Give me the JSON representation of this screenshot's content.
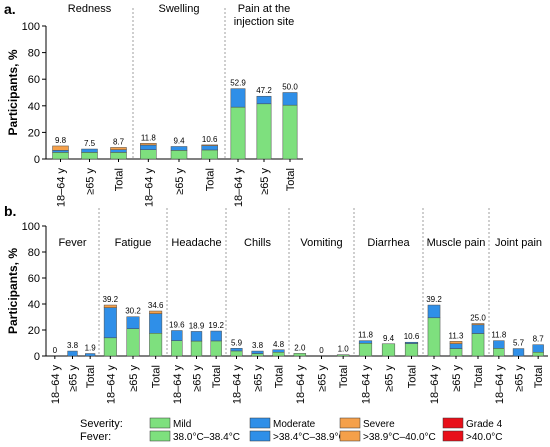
{
  "colors": {
    "mild": "#7ee07e",
    "moderate": "#2f8fe8",
    "severe": "#f5a04a",
    "grade4": "#e8101a"
  },
  "legend": {
    "severity_label": "Severity:",
    "fever_label": "Fever:",
    "entries": [
      {
        "key": "mild",
        "severity": "Mild",
        "fever": "38.0°C–38.4°C",
        "color": "#7ee07e"
      },
      {
        "key": "moderate",
        "severity": "Moderate",
        "fever": ">38.4°C–38.9°C",
        "color": "#2f8fe8"
      },
      {
        "key": "severe",
        "severity": "Severe",
        "fever": ">38.9°C–40.0°C",
        "color": "#f5a04a"
      },
      {
        "key": "grade4",
        "severity": "Grade 4",
        "fever": ">40.0°C",
        "color": "#e8101a"
      }
    ]
  },
  "chart_data": [
    {
      "type": "bar",
      "stacked": true,
      "panel_label": "a.",
      "ylabel": "Participants, %",
      "ylim": [
        0,
        100
      ],
      "yticks": [
        0,
        20,
        40,
        60,
        80,
        100
      ],
      "grid": false,
      "stack_order": [
        "mild",
        "moderate",
        "severe",
        "grade4"
      ],
      "groups": [
        {
          "name": "Redness",
          "categories": [
            "18–64 y",
            "≥65 y",
            "Total"
          ],
          "totals": [
            "9.8",
            "7.5",
            "8.7"
          ],
          "mild": [
            5.0,
            5.0,
            5.0
          ],
          "moderate": [
            1.5,
            2.5,
            2.0
          ],
          "severe": [
            3.3,
            0,
            1.7
          ],
          "grade4": [
            0,
            0,
            0
          ]
        },
        {
          "name": "Swelling",
          "categories": [
            "18–64 y",
            "≥65 y",
            "Total"
          ],
          "totals": [
            "11.8",
            "9.4",
            "10.6"
          ],
          "mild": [
            7.0,
            6.5,
            6.8
          ],
          "moderate": [
            3.5,
            2.9,
            3.2
          ],
          "severe": [
            1.3,
            0,
            0.6
          ],
          "grade4": [
            0,
            0,
            0
          ]
        },
        {
          "name": "Pain at the injection site",
          "categories": [
            "18–64 y",
            "≥65 y",
            "Total"
          ],
          "totals": [
            "52.9",
            "47.2",
            "50.0"
          ],
          "mild": [
            39.0,
            41.5,
            40.5
          ],
          "moderate": [
            13.9,
            5.7,
            9.5
          ],
          "severe": [
            0,
            0,
            0
          ],
          "grade4": [
            0,
            0,
            0
          ]
        }
      ]
    },
    {
      "type": "bar",
      "stacked": true,
      "panel_label": "b.",
      "ylabel": "Participants, %",
      "ylim": [
        0,
        100
      ],
      "yticks": [
        0,
        20,
        40,
        60,
        80,
        100
      ],
      "grid": false,
      "stack_order": [
        "mild",
        "moderate",
        "severe",
        "grade4"
      ],
      "groups": [
        {
          "name": "Fever",
          "categories": [
            "18–64 y",
            "≥65 y",
            "Total"
          ],
          "totals": [
            "0",
            "3.8",
            "1.9"
          ],
          "mild": [
            0,
            0,
            0
          ],
          "moderate": [
            0,
            3.8,
            1.9
          ],
          "severe": [
            0,
            0,
            0
          ],
          "grade4": [
            0,
            0,
            0
          ]
        },
        {
          "name": "Fatigue",
          "categories": [
            "18–64 y",
            "≥65 y",
            "Total"
          ],
          "totals": [
            "39.2",
            "30.2",
            "34.6"
          ],
          "mild": [
            14.0,
            21.0,
            17.5
          ],
          "moderate": [
            23.2,
            9.2,
            15.1
          ],
          "severe": [
            2.0,
            0,
            2.0
          ],
          "grade4": [
            0,
            0,
            0
          ]
        },
        {
          "name": "Headache",
          "categories": [
            "18–64 y",
            "≥65 y",
            "Total"
          ],
          "totals": [
            "19.6",
            "18.9",
            "19.2"
          ],
          "mild": [
            11.8,
            11.5,
            11.6
          ],
          "moderate": [
            7.8,
            7.4,
            7.6
          ],
          "severe": [
            0,
            0,
            0
          ],
          "grade4": [
            0,
            0,
            0
          ]
        },
        {
          "name": "Chills",
          "categories": [
            "18–64 y",
            "≥65 y",
            "Total"
          ],
          "totals": [
            "5.9",
            "3.8",
            "4.8"
          ],
          "mild": [
            3.9,
            1.9,
            2.9
          ],
          "moderate": [
            2.0,
            1.9,
            1.9
          ],
          "severe": [
            0,
            0,
            0
          ],
          "grade4": [
            0,
            0,
            0
          ]
        },
        {
          "name": "Vomiting",
          "categories": [
            "18–64 y",
            "≥65 y",
            "Total"
          ],
          "totals": [
            "2.0",
            "0",
            "1.0"
          ],
          "mild": [
            2.0,
            0,
            1.0
          ],
          "moderate": [
            0,
            0,
            0
          ],
          "severe": [
            0,
            0,
            0
          ],
          "grade4": [
            0,
            0,
            0
          ]
        },
        {
          "name": "Diarrhea",
          "categories": [
            "18–64 y",
            "≥65 y",
            "Total"
          ],
          "totals": [
            "11.8",
            "9.4",
            "10.6"
          ],
          "mild": [
            9.8,
            9.4,
            9.6
          ],
          "moderate": [
            2.0,
            0,
            1.0
          ],
          "severe": [
            0,
            0,
            0
          ],
          "grade4": [
            0,
            0,
            0
          ]
        },
        {
          "name": "Muscle pain",
          "categories": [
            "18–64 y",
            "≥65 y",
            "Total"
          ],
          "totals": [
            "39.2",
            "11.3",
            "25.0"
          ],
          "mild": [
            29.4,
            5.7,
            17.3
          ],
          "moderate": [
            9.8,
            3.8,
            6.7
          ],
          "severe": [
            0,
            1.8,
            1.0
          ],
          "grade4": [
            0,
            0,
            0
          ]
        },
        {
          "name": "Joint pain",
          "categories": [
            "18–64 y",
            "≥65 y",
            "Total"
          ],
          "totals": [
            "11.8",
            "5.7",
            "8.7"
          ],
          "mild": [
            5.9,
            0,
            2.9
          ],
          "moderate": [
            5.9,
            5.7,
            5.8
          ],
          "severe": [
            0,
            0,
            0
          ],
          "grade4": [
            0,
            0,
            0
          ]
        }
      ]
    }
  ]
}
